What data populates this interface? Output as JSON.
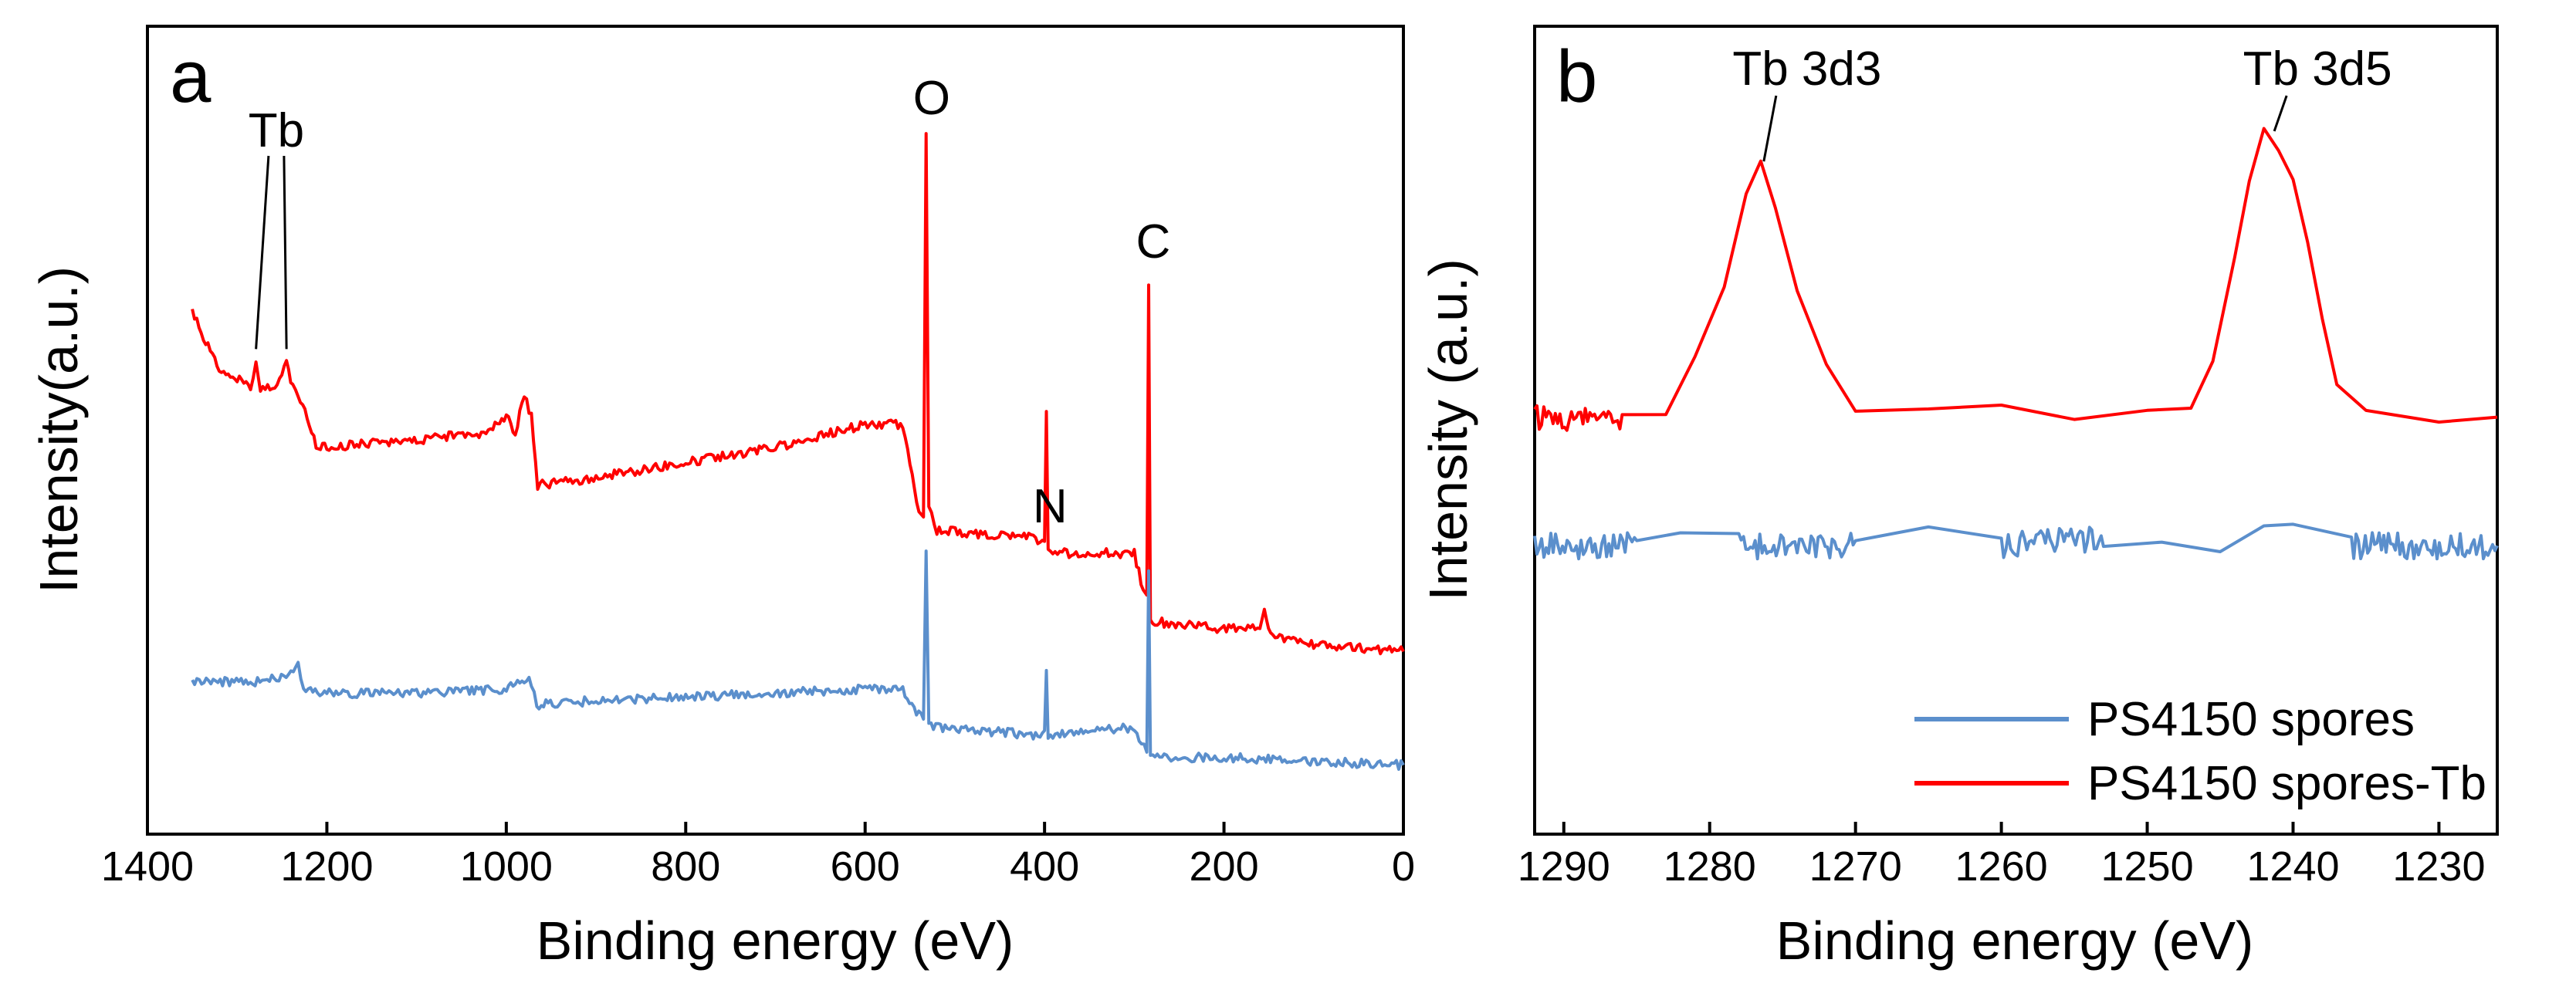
{
  "chart_data": [
    {
      "panel": "a",
      "type": "line",
      "title": "",
      "xlabel": "Binding energy (eV)",
      "ylabel": "Intensity(a.u.)",
      "xlim": [
        1400,
        0
      ],
      "ylim": [
        0,
        1
      ],
      "x_ticks": [
        "1400",
        "1200",
        "1000",
        "800",
        "600",
        "400",
        "200",
        "0"
      ],
      "annotations": [
        {
          "text": "Tb",
          "x": 1265
        },
        {
          "text": "O",
          "x": 531
        },
        {
          "text": "N",
          "x": 399
        },
        {
          "text": "C",
          "x": 284
        }
      ],
      "series": [
        {
          "name": "PS4150 spores-Tb",
          "color": "#ff0000",
          "points": [
            [
              1350,
              0.67
            ],
            [
              1335,
              0.63
            ],
            [
              1320,
              0.59
            ],
            [
              1300,
              0.58
            ],
            [
              1285,
              0.57
            ],
            [
              1279,
              0.6
            ],
            [
              1274,
              0.57
            ],
            [
              1258,
              0.57
            ],
            [
              1245,
              0.6
            ],
            [
              1238,
              0.57
            ],
            [
              1232,
              0.56
            ],
            [
              1222,
              0.53
            ],
            [
              1212,
              0.49
            ],
            [
              1200,
              0.49
            ],
            [
              1100,
              0.5
            ],
            [
              1020,
              0.51
            ],
            [
              1000,
              0.53
            ],
            [
              990,
              0.51
            ],
            [
              980,
              0.56
            ],
            [
              972,
              0.53
            ],
            [
              965,
              0.44
            ],
            [
              900,
              0.45
            ],
            [
              800,
              0.47
            ],
            [
              700,
              0.49
            ],
            [
              600,
              0.52
            ],
            [
              558,
              0.52
            ],
            [
              550,
              0.47
            ],
            [
              540,
              0.4
            ],
            [
              535,
              0.4
            ],
            [
              532,
              0.9
            ],
            [
              529,
              0.41
            ],
            [
              520,
              0.38
            ],
            [
              410,
              0.37
            ],
            [
              400,
              0.36
            ],
            [
              398,
              0.54
            ],
            [
              396,
              0.35
            ],
            [
              300,
              0.35
            ],
            [
              290,
              0.3
            ],
            [
              286,
              0.3
            ],
            [
              284,
              0.71
            ],
            [
              282,
              0.26
            ],
            [
              200,
              0.25
            ],
            [
              160,
              0.25
            ],
            [
              155,
              0.27
            ],
            [
              148,
              0.24
            ],
            [
              100,
              0.23
            ],
            [
              0,
              0.22
            ]
          ]
        },
        {
          "name": "PS4150 spores",
          "color": "#5b8fcc",
          "points": [
            [
              1350,
              0.18
            ],
            [
              1280,
              0.18
            ],
            [
              1240,
              0.19
            ],
            [
              1232,
              0.2
            ],
            [
              1226,
              0.17
            ],
            [
              1200,
              0.165
            ],
            [
              1100,
              0.165
            ],
            [
              1000,
              0.17
            ],
            [
              990,
              0.18
            ],
            [
              980,
              0.18
            ],
            [
              972,
              0.18
            ],
            [
              966,
              0.15
            ],
            [
              900,
              0.155
            ],
            [
              800,
              0.16
            ],
            [
              700,
              0.165
            ],
            [
              600,
              0.17
            ],
            [
              558,
              0.17
            ],
            [
              548,
              0.15
            ],
            [
              535,
              0.13
            ],
            [
              532,
              0.35
            ],
            [
              529,
              0.12
            ],
            [
              410,
              0.11
            ],
            [
              400,
              0.11
            ],
            [
              398,
              0.2
            ],
            [
              396,
              0.11
            ],
            [
              302,
              0.12
            ],
            [
              292,
              0.1
            ],
            [
              286,
              0.09
            ],
            [
              284,
              0.33
            ],
            [
              282,
              0.08
            ],
            [
              200,
              0.08
            ],
            [
              0,
              0.07
            ]
          ]
        }
      ]
    },
    {
      "panel": "b",
      "type": "line",
      "title": "",
      "xlabel": "Binding energy (eV)",
      "ylabel": "Intensity (a.u.)",
      "xlim": [
        1292,
        1226
      ],
      "ylim": [
        0,
        1
      ],
      "x_ticks": [
        "1290",
        "1280",
        "1270",
        "1260",
        "1250",
        "1240",
        "1230"
      ],
      "annotations": [
        {
          "text": "Tb 3d3",
          "x": 1276.5
        },
        {
          "text": "Tb 3d5",
          "x": 1241.5
        }
      ],
      "legend_position": "bottom-right",
      "series": [
        {
          "name": "PS4150 spores",
          "color": "#5b8fcc",
          "points": [
            [
              1292,
              0.36
            ],
            [
              1285,
              0.36
            ],
            [
              1282,
              0.38
            ],
            [
              1278,
              0.36
            ],
            [
              1270,
              0.36
            ],
            [
              1265,
              0.38
            ],
            [
              1260,
              0.36
            ],
            [
              1253,
              0.37
            ],
            [
              1249,
              0.38
            ],
            [
              1245,
              0.36
            ],
            [
              1242,
              0.39
            ],
            [
              1240,
              0.38
            ],
            [
              1236,
              0.36
            ],
            [
              1226,
              0.36
            ]
          ]
        },
        {
          "name": "PS4150 spores-Tb",
          "color": "#ff0000",
          "points": [
            [
              1292,
              0.53
            ],
            [
              1286,
              0.53
            ],
            [
              1283,
              0.55
            ],
            [
              1281,
              0.6
            ],
            [
              1279,
              0.7
            ],
            [
              1277.5,
              0.82
            ],
            [
              1276.5,
              0.86
            ],
            [
              1275.5,
              0.8
            ],
            [
              1274,
              0.7
            ],
            [
              1272,
              0.6
            ],
            [
              1270,
              0.54
            ],
            [
              1265,
              0.53
            ],
            [
              1260,
              0.54
            ],
            [
              1255,
              0.53
            ],
            [
              1250,
              0.53
            ],
            [
              1247,
              0.55
            ],
            [
              1245.5,
              0.62
            ],
            [
              1244,
              0.75
            ],
            [
              1243,
              0.85
            ],
            [
              1242,
              0.9
            ],
            [
              1241,
              0.88
            ],
            [
              1240,
              0.86
            ],
            [
              1239,
              0.77
            ],
            [
              1238,
              0.65
            ],
            [
              1237,
              0.57
            ],
            [
              1235,
              0.54
            ],
            [
              1230,
              0.53
            ],
            [
              1226,
              0.53
            ]
          ]
        }
      ]
    }
  ]
}
